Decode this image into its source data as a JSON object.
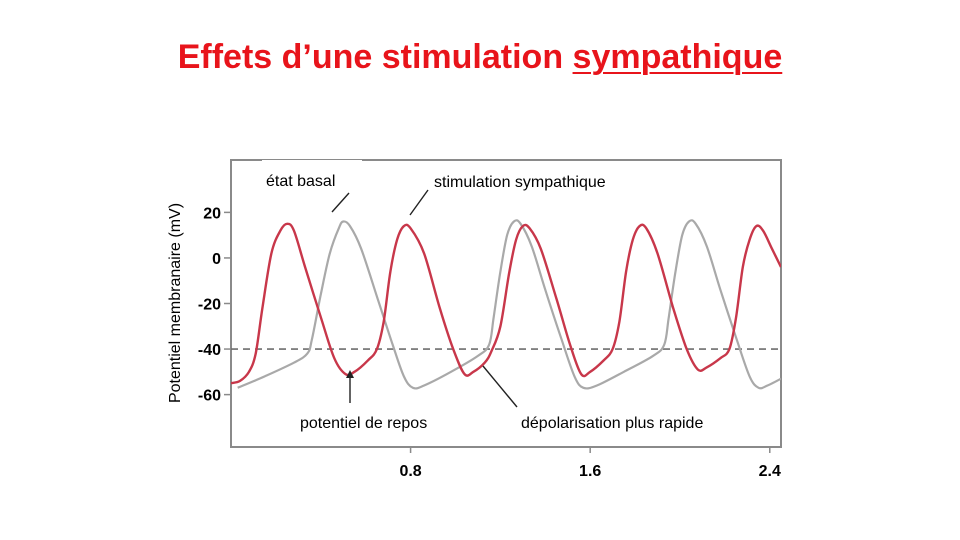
{
  "slide": {
    "title_part1": "Effets d’une stimulation ",
    "title_part2": "sympathique"
  },
  "colors": {
    "title": "#e8141b",
    "basal": "#a9a9a9",
    "sympathetic": "#c8374a",
    "threshold": "#6e6e6e",
    "frame": "#8a8a8a"
  },
  "chart_data": {
    "type": "line",
    "title": "",
    "xlabel": "",
    "ylabel": "Potentiel membranaire  (mV)",
    "xlim": [
      0,
      2.45
    ],
    "ylim": [
      -83,
      43
    ],
    "x_ticks": [
      {
        "value": 0.8,
        "label": "0.8"
      },
      {
        "value": 1.6,
        "label": "1.6"
      },
      {
        "value": 2.4,
        "label": "2.4"
      }
    ],
    "y_ticks": [
      {
        "value": 20,
        "label": "20"
      },
      {
        "value": 0,
        "label": "0"
      },
      {
        "value": -20,
        "label": "-20"
      },
      {
        "value": -40,
        "label": "-40"
      },
      {
        "value": -60,
        "label": "-60"
      }
    ],
    "threshold": {
      "value": -40,
      "style": "dashed"
    },
    "grid": false,
    "series": [
      {
        "name": "état basal",
        "points": [
          [
            0.03,
            -57
          ],
          [
            0.15,
            -52
          ],
          [
            0.28,
            -46
          ],
          [
            0.34,
            -42
          ],
          [
            0.36,
            -36
          ],
          [
            0.4,
            -16
          ],
          [
            0.44,
            2
          ],
          [
            0.48,
            13
          ],
          [
            0.5,
            16
          ],
          [
            0.53,
            14
          ],
          [
            0.58,
            4
          ],
          [
            0.66,
            -20
          ],
          [
            0.72,
            -38
          ],
          [
            0.77,
            -52
          ],
          [
            0.81,
            -57
          ],
          [
            0.86,
            -56
          ],
          [
            0.98,
            -50
          ],
          [
            1.1,
            -43
          ],
          [
            1.15,
            -38
          ],
          [
            1.17,
            -26
          ],
          [
            1.2,
            -6
          ],
          [
            1.23,
            10
          ],
          [
            1.26,
            16
          ],
          [
            1.29,
            15
          ],
          [
            1.34,
            5
          ],
          [
            1.4,
            -14
          ],
          [
            1.47,
            -35
          ],
          [
            1.53,
            -52
          ],
          [
            1.57,
            -57
          ],
          [
            1.63,
            -56
          ],
          [
            1.75,
            -50
          ],
          [
            1.88,
            -43
          ],
          [
            1.93,
            -38
          ],
          [
            1.95,
            -26
          ],
          [
            1.98,
            -6
          ],
          [
            2.01,
            10
          ],
          [
            2.04,
            16
          ],
          [
            2.07,
            15
          ],
          [
            2.12,
            5
          ],
          [
            2.18,
            -14
          ],
          [
            2.25,
            -35
          ],
          [
            2.31,
            -52
          ],
          [
            2.35,
            -57
          ],
          [
            2.39,
            -56
          ],
          [
            2.45,
            -53
          ]
        ]
      },
      {
        "name": "stimulation sympathique",
        "points": [
          [
            0.0,
            -55
          ],
          [
            0.04,
            -54
          ],
          [
            0.08,
            -50
          ],
          [
            0.11,
            -42
          ],
          [
            0.14,
            -22
          ],
          [
            0.18,
            2
          ],
          [
            0.22,
            12
          ],
          [
            0.25,
            15
          ],
          [
            0.28,
            12
          ],
          [
            0.33,
            -4
          ],
          [
            0.4,
            -26
          ],
          [
            0.46,
            -44
          ],
          [
            0.51,
            -51
          ],
          [
            0.55,
            -50
          ],
          [
            0.61,
            -45
          ],
          [
            0.65,
            -40
          ],
          [
            0.68,
            -28
          ],
          [
            0.71,
            -6
          ],
          [
            0.74,
            8
          ],
          [
            0.77,
            14
          ],
          [
            0.8,
            13
          ],
          [
            0.86,
            2
          ],
          [
            0.93,
            -22
          ],
          [
            0.99,
            -40
          ],
          [
            1.04,
            -51
          ],
          [
            1.08,
            -50
          ],
          [
            1.13,
            -46
          ],
          [
            1.16,
            -41
          ],
          [
            1.2,
            -30
          ],
          [
            1.24,
            -6
          ],
          [
            1.27,
            8
          ],
          [
            1.3,
            14
          ],
          [
            1.33,
            13
          ],
          [
            1.38,
            4
          ],
          [
            1.45,
            -18
          ],
          [
            1.51,
            -38
          ],
          [
            1.56,
            -51
          ],
          [
            1.6,
            -50
          ],
          [
            1.66,
            -45
          ],
          [
            1.7,
            -40
          ],
          [
            1.73,
            -28
          ],
          [
            1.76,
            -6
          ],
          [
            1.79,
            8
          ],
          [
            1.82,
            14
          ],
          [
            1.85,
            13
          ],
          [
            1.9,
            2
          ],
          [
            1.97,
            -22
          ],
          [
            2.03,
            -40
          ],
          [
            2.08,
            -49
          ],
          [
            2.12,
            -48
          ],
          [
            2.18,
            -44
          ],
          [
            2.22,
            -40
          ],
          [
            2.25,
            -26
          ],
          [
            2.28,
            -4
          ],
          [
            2.31,
            8
          ],
          [
            2.34,
            14
          ],
          [
            2.37,
            12
          ],
          [
            2.41,
            4
          ],
          [
            2.45,
            -4
          ]
        ]
      }
    ],
    "annotations": [
      {
        "label": "état basal",
        "points_to": "état basal"
      },
      {
        "label": "stimulation  sympathique",
        "points_to": "stimulation sympathique"
      },
      {
        "label": "potentiel de repos",
        "points_to": "stimulation sympathique minimum"
      },
      {
        "label": "dépolarisation plus rapide",
        "points_to": "stimulation sympathique upstroke"
      }
    ]
  }
}
